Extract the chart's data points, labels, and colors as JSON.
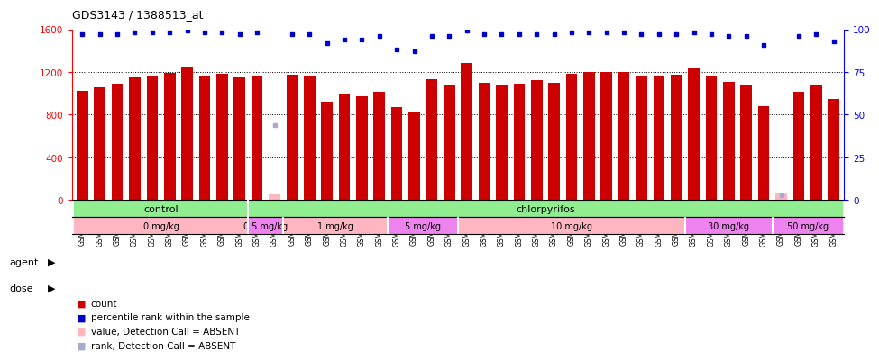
{
  "title": "GDS3143 / 1388513_at",
  "samples": [
    "GSM246129",
    "GSM246130",
    "GSM246131",
    "GSM246145",
    "GSM246146",
    "GSM246147",
    "GSM246148",
    "GSM246157",
    "GSM246158",
    "GSM246159",
    "GSM246149",
    "GSM246150",
    "GSM246151",
    "GSM246152",
    "GSM246132",
    "GSM246133",
    "GSM246134",
    "GSM246135",
    "GSM246160",
    "GSM246161",
    "GSM246162",
    "GSM246163",
    "GSM246164",
    "GSM246165",
    "GSM246166",
    "GSM246167",
    "GSM246136",
    "GSM246137",
    "GSM246138",
    "GSM246139",
    "GSM246140",
    "GSM246168",
    "GSM246169",
    "GSM246170",
    "GSM246171",
    "GSM246154",
    "GSM246155",
    "GSM246156",
    "GSM246172",
    "GSM246173",
    "GSM246141",
    "GSM246142",
    "GSM246143",
    "GSM246144"
  ],
  "counts": [
    1020,
    1060,
    1090,
    1150,
    1170,
    1190,
    1240,
    1170,
    1180,
    1150,
    1170,
    50,
    1175,
    1155,
    920,
    990,
    975,
    1010,
    870,
    820,
    1130,
    1080,
    1280,
    1095,
    1080,
    1090,
    1120,
    1100,
    1180,
    1200,
    1200,
    1200,
    1160,
    1165,
    1175,
    1230,
    1160,
    1110,
    1085,
    880,
    60,
    1010,
    1085,
    950
  ],
  "absent_count": [
    false,
    false,
    false,
    false,
    false,
    false,
    false,
    false,
    false,
    false,
    false,
    true,
    false,
    false,
    false,
    false,
    false,
    false,
    false,
    false,
    false,
    false,
    false,
    false,
    false,
    false,
    false,
    false,
    false,
    false,
    false,
    false,
    false,
    false,
    false,
    false,
    false,
    false,
    false,
    false,
    true,
    false,
    false,
    false
  ],
  "percentile_ranks": [
    97,
    97,
    97,
    98,
    98,
    98,
    99,
    98,
    98,
    97,
    98,
    44,
    97,
    97,
    92,
    94,
    94,
    96,
    88,
    87,
    96,
    96,
    99,
    97,
    97,
    97,
    97,
    97,
    98,
    98,
    98,
    98,
    97,
    97,
    97,
    98,
    97,
    96,
    96,
    91,
    3,
    96,
    97,
    93
  ],
  "absent_rank": [
    false,
    false,
    false,
    false,
    false,
    false,
    false,
    false,
    false,
    false,
    false,
    true,
    false,
    false,
    false,
    false,
    false,
    false,
    false,
    false,
    false,
    false,
    false,
    false,
    false,
    false,
    false,
    false,
    false,
    false,
    false,
    false,
    false,
    false,
    false,
    false,
    false,
    false,
    false,
    false,
    true,
    false,
    false,
    false
  ],
  "ylim_left": [
    0,
    1600
  ],
  "ylim_right": [
    0,
    100
  ],
  "yticks_left": [
    0,
    400,
    800,
    1200,
    1600
  ],
  "yticks_right": [
    0,
    25,
    50,
    75,
    100
  ],
  "bar_color": "#CC0000",
  "absent_bar_color": "#FFB6C1",
  "rank_color": "#0000CC",
  "absent_rank_color": "#AAAACC",
  "background_color": "#FFFFFF",
  "plot_bg_color": "#FFFFFF",
  "agent_blocks": [
    {
      "label": "control",
      "start": 0,
      "end": 9,
      "color": "#90EE90"
    },
    {
      "label": "chlorpyrifos",
      "start": 10,
      "end": 43,
      "color": "#90EE90"
    }
  ],
  "dose_blocks": [
    {
      "label": "0 mg/kg",
      "start": 0,
      "end": 9,
      "color": "#FFB6C1"
    },
    {
      "label": "0.5 mg/kg",
      "start": 10,
      "end": 11,
      "color": "#EE82EE"
    },
    {
      "label": "1 mg/kg",
      "start": 12,
      "end": 17,
      "color": "#FFB6C1"
    },
    {
      "label": "5 mg/kg",
      "start": 18,
      "end": 21,
      "color": "#EE82EE"
    },
    {
      "label": "10 mg/kg",
      "start": 22,
      "end": 34,
      "color": "#FFB6C1"
    },
    {
      "label": "30 mg/kg",
      "start": 35,
      "end": 39,
      "color": "#EE82EE"
    },
    {
      "label": "50 mg/kg",
      "start": 40,
      "end": 43,
      "color": "#EE82EE"
    }
  ],
  "legend_items": [
    {
      "label": "count",
      "color": "#CC0000"
    },
    {
      "label": "percentile rank within the sample",
      "color": "#0000CC"
    },
    {
      "label": "value, Detection Call = ABSENT",
      "color": "#FFB6C1"
    },
    {
      "label": "rank, Detection Call = ABSENT",
      "color": "#AAAACC"
    }
  ]
}
